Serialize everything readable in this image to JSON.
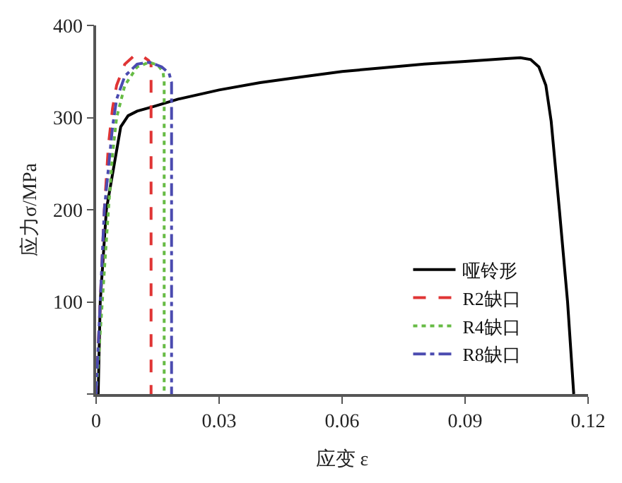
{
  "chart_data": {
    "type": "line",
    "xlabel": "应变 ε",
    "ylabel": "应力σ/MPa",
    "xlim": [
      0,
      0.12
    ],
    "ylim": [
      0,
      400
    ],
    "xticks": [
      0,
      0.03,
      0.06,
      0.09,
      0.12
    ],
    "yticks": [
      {
        "value": 0,
        "label": null
      },
      100,
      200,
      300,
      400
    ],
    "legend": "bottom right",
    "marker": "none",
    "series": [
      {
        "name": "哑铃形",
        "color": "#000000",
        "line_style": "solid",
        "x": [
          0.0005,
          0.001,
          0.0025,
          0.006,
          0.0078,
          0.01,
          0.014,
          0.02,
          0.03,
          0.04,
          0.05,
          0.06,
          0.07,
          0.08,
          0.09,
          0.1,
          0.1035,
          0.106,
          0.108,
          0.1097,
          0.111,
          0.113,
          0.115,
          0.1165
        ],
        "values": [
          0,
          100,
          200,
          290,
          302,
          307,
          312,
          320,
          330,
          338,
          344,
          350,
          354,
          358,
          361,
          364,
          365,
          363,
          355,
          335,
          296,
          200,
          100,
          0
        ]
      },
      {
        "name": "R2缺口",
        "color": "#e03535",
        "line_style": "dashed",
        "x": [
          0,
          0.001,
          0.002,
          0.003,
          0.004,
          0.005,
          0.007,
          0.0095,
          0.0115,
          0.0128,
          0.0134,
          0.0134
        ],
        "values": [
          0,
          100,
          200,
          270,
          310,
          335,
          358,
          368,
          366,
          362,
          358,
          0
        ]
      },
      {
        "name": "R4缺口",
        "color": "#66bb44",
        "line_style": "dotted",
        "x": [
          0,
          0.0015,
          0.003,
          0.004,
          0.005,
          0.007,
          0.01,
          0.013,
          0.015,
          0.0163,
          0.0166,
          0.0166
        ],
        "values": [
          0,
          100,
          200,
          260,
          300,
          335,
          355,
          360,
          357,
          350,
          340,
          0
        ]
      },
      {
        "name": "R8缺口",
        "color": "#4b4bb0",
        "line_style": "dashdot",
        "x": [
          0,
          0.001,
          0.002,
          0.003,
          0.004,
          0.005,
          0.007,
          0.01,
          0.013,
          0.016,
          0.0178,
          0.0184,
          0.0184
        ],
        "values": [
          0,
          100,
          200,
          245,
          290,
          320,
          345,
          358,
          360,
          355,
          348,
          338,
          0
        ]
      }
    ]
  }
}
